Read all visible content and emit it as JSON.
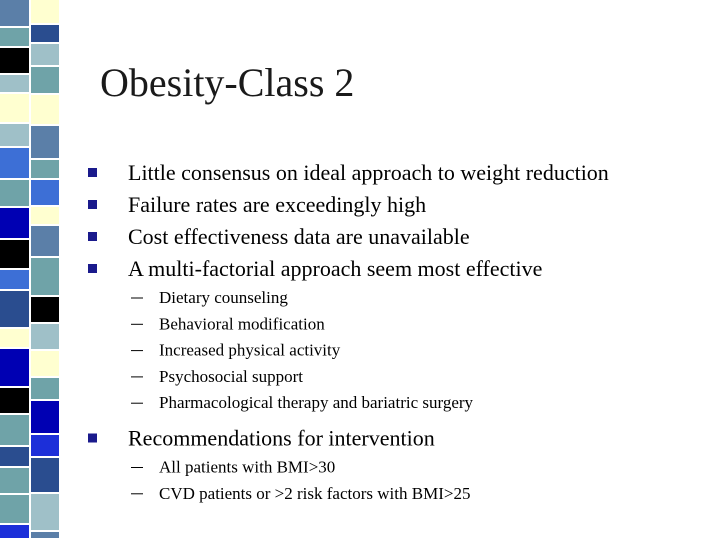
{
  "slide": {
    "title": "Obesity-Class 2",
    "bullets": [
      {
        "text": "Little consensus on ideal approach to weight reduction"
      },
      {
        "text": "Failure rates are exceedingly high"
      },
      {
        "text": "Cost effectiveness data are unavailable"
      },
      {
        "text": "A multi-factorial approach seem most effective",
        "subitems": [
          "Dietary counseling",
          "Behavioral modification",
          "Increased physical activity",
          "Psychosocial support",
          "Pharmacological therapy and bariatric surgery"
        ]
      },
      {
        "text": "Recommendations for intervention",
        "subitems": [
          "All patients with BMI>30",
          "CVD patients or >2 risk factors with BMI>25"
        ]
      }
    ]
  }
}
